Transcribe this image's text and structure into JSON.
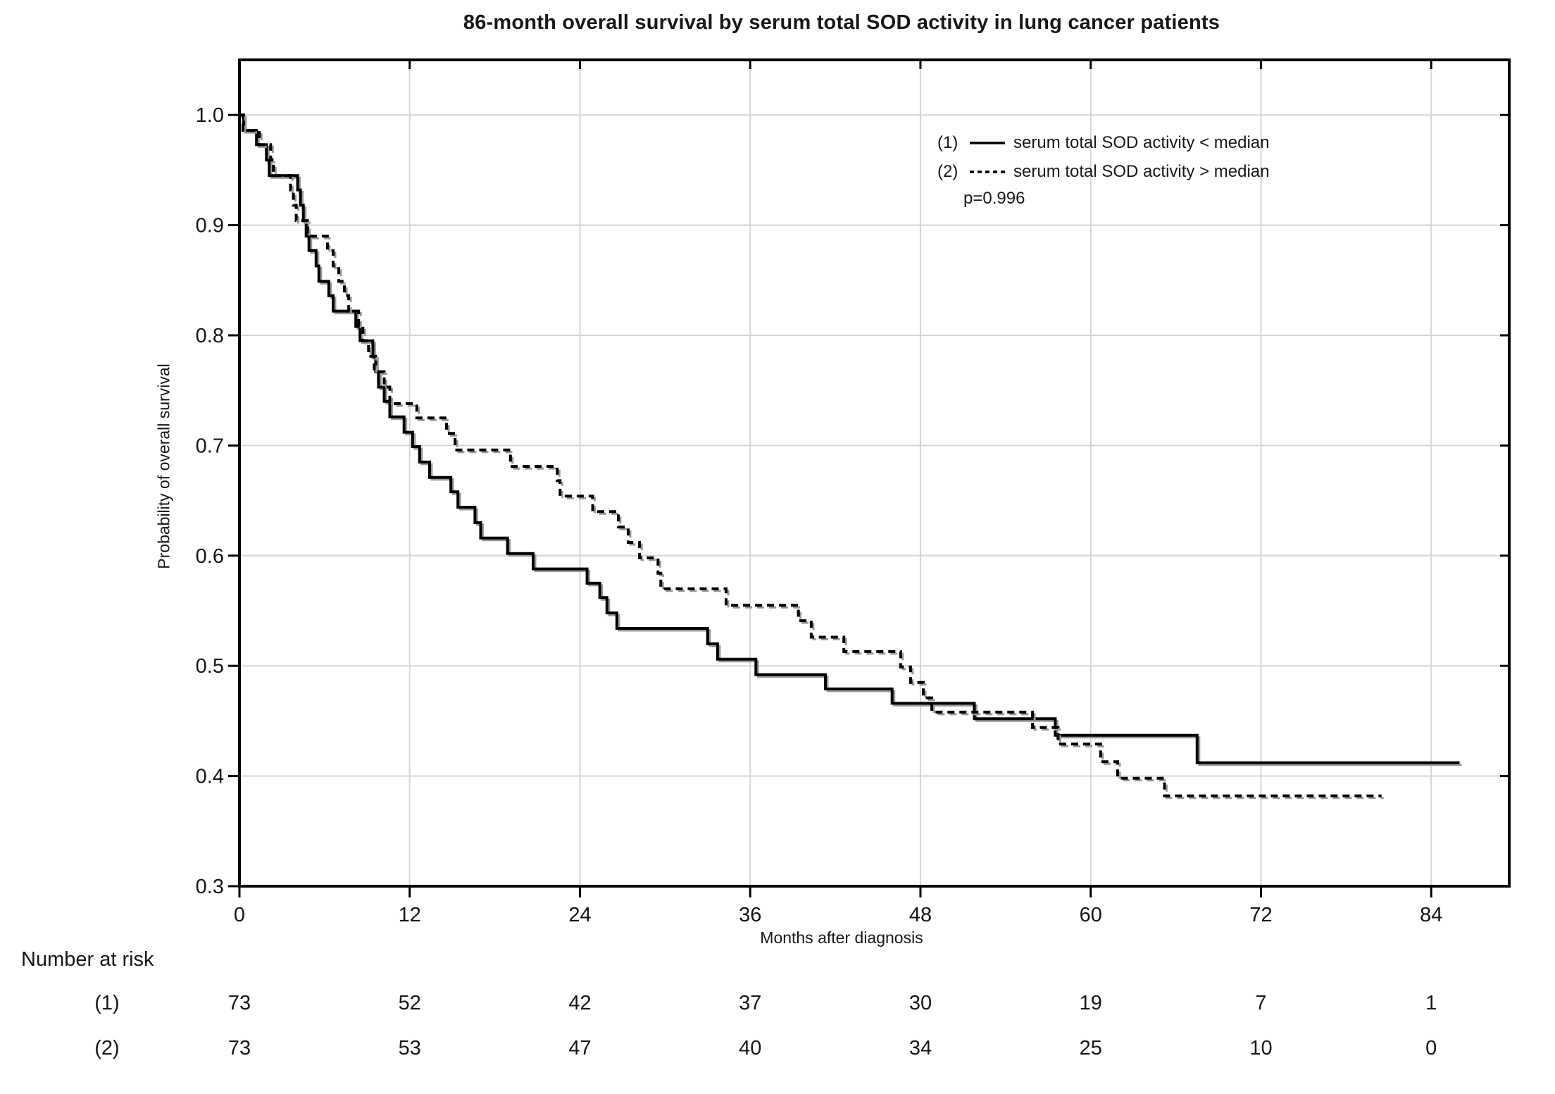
{
  "chart_data": {
    "type": "line",
    "subtype": "kaplan-meier-step",
    "title": "86-month overall survival by serum total SOD activity in lung cancer patients",
    "xlabel": "Months after diagnosis",
    "ylabel": "Probability of overall survival",
    "xlim": [
      0,
      89.5
    ],
    "ylim": [
      0.3,
      1.05
    ],
    "xticks": [
      0,
      12,
      24,
      36,
      48,
      60,
      72,
      84
    ],
    "yticks": [
      0.3,
      0.4,
      0.5,
      0.6,
      0.7,
      0.8,
      0.9,
      1.0
    ],
    "grid": true,
    "legend_position": "top-right-inside",
    "p_value": "p=0.996",
    "series": [
      {
        "id": "(1)",
        "name": "serum total SOD activity < median",
        "line_style": "solid",
        "color": "#000000",
        "points": [
          [
            0,
            1.0
          ],
          [
            0.3,
            0.986
          ],
          [
            1.2,
            0.973
          ],
          [
            1.9,
            0.959
          ],
          [
            2.1,
            0.945
          ],
          [
            4.1,
            0.932
          ],
          [
            4.3,
            0.918
          ],
          [
            4.5,
            0.904
          ],
          [
            4.7,
            0.89
          ],
          [
            4.9,
            0.877
          ],
          [
            5.4,
            0.863
          ],
          [
            5.6,
            0.849
          ],
          [
            6.3,
            0.836
          ],
          [
            6.6,
            0.822
          ],
          [
            8.2,
            0.808
          ],
          [
            8.5,
            0.795
          ],
          [
            9.4,
            0.781
          ],
          [
            9.6,
            0.767
          ],
          [
            9.8,
            0.753
          ],
          [
            10.2,
            0.74
          ],
          [
            10.6,
            0.726
          ],
          [
            11.6,
            0.712
          ],
          [
            12.2,
            0.699
          ],
          [
            12.7,
            0.685
          ],
          [
            13.4,
            0.671
          ],
          [
            14.9,
            0.658
          ],
          [
            15.4,
            0.644
          ],
          [
            16.6,
            0.63
          ],
          [
            17.0,
            0.616
          ],
          [
            18.9,
            0.602
          ],
          [
            20.7,
            0.588
          ],
          [
            24.5,
            0.575
          ],
          [
            25.4,
            0.562
          ],
          [
            25.9,
            0.548
          ],
          [
            26.6,
            0.534
          ],
          [
            33.0,
            0.52
          ],
          [
            33.7,
            0.506
          ],
          [
            36.4,
            0.492
          ],
          [
            41.3,
            0.479
          ],
          [
            46.0,
            0.466
          ],
          [
            51.8,
            0.452
          ],
          [
            57.5,
            0.437
          ],
          [
            67.5,
            0.412
          ],
          [
            86.0,
            0.412
          ]
        ]
      },
      {
        "id": "(2)",
        "name": "serum total SOD activity > median",
        "line_style": "dashed",
        "color": "#000000",
        "points": [
          [
            0,
            1.0
          ],
          [
            0.25,
            0.986
          ],
          [
            1.4,
            0.973
          ],
          [
            2.2,
            0.959
          ],
          [
            2.4,
            0.945
          ],
          [
            3.6,
            0.932
          ],
          [
            3.8,
            0.918
          ],
          [
            4.0,
            0.904
          ],
          [
            4.8,
            0.89
          ],
          [
            6.2,
            0.877
          ],
          [
            6.6,
            0.863
          ],
          [
            7.0,
            0.849
          ],
          [
            7.4,
            0.836
          ],
          [
            7.7,
            0.822
          ],
          [
            8.4,
            0.808
          ],
          [
            8.7,
            0.795
          ],
          [
            9.1,
            0.781
          ],
          [
            9.5,
            0.767
          ],
          [
            10.2,
            0.753
          ],
          [
            10.6,
            0.738
          ],
          [
            12.5,
            0.725
          ],
          [
            14.6,
            0.711
          ],
          [
            15.2,
            0.696
          ],
          [
            19.1,
            0.681
          ],
          [
            22.4,
            0.668
          ],
          [
            22.6,
            0.654
          ],
          [
            24.9,
            0.64
          ],
          [
            26.7,
            0.626
          ],
          [
            27.4,
            0.612
          ],
          [
            28.2,
            0.598
          ],
          [
            29.5,
            0.584
          ],
          [
            29.7,
            0.57
          ],
          [
            34.3,
            0.555
          ],
          [
            39.4,
            0.541
          ],
          [
            40.3,
            0.526
          ],
          [
            42.6,
            0.513
          ],
          [
            46.6,
            0.499
          ],
          [
            47.3,
            0.485
          ],
          [
            48.2,
            0.471
          ],
          [
            48.8,
            0.458
          ],
          [
            55.9,
            0.444
          ],
          [
            57.7,
            0.429
          ],
          [
            60.7,
            0.413
          ],
          [
            61.9,
            0.398
          ],
          [
            65.2,
            0.382
          ],
          [
            80.5,
            0.382
          ]
        ]
      }
    ],
    "at_risk": {
      "header": "Number at risk",
      "months": [
        0,
        12,
        24,
        36,
        48,
        60,
        72,
        84
      ],
      "rows": [
        {
          "label": "(1)",
          "counts": [
            73,
            52,
            42,
            37,
            30,
            19,
            7,
            1
          ]
        },
        {
          "label": "(2)",
          "counts": [
            73,
            53,
            47,
            40,
            34,
            25,
            10,
            0
          ]
        }
      ]
    },
    "colors": {
      "line": "#000000",
      "line_shadow": "#9a9a9a",
      "grid": "#d6d6d6",
      "frame": "#000000",
      "background": "#ffffff"
    }
  }
}
